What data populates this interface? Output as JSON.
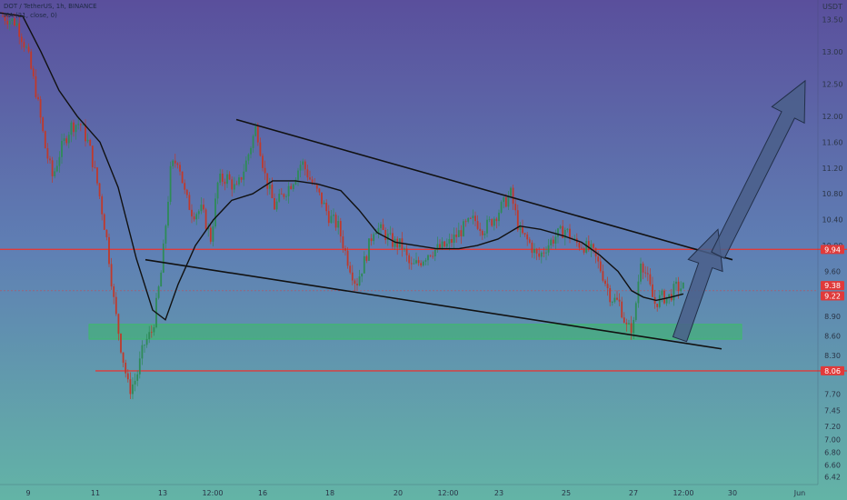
{
  "header": {
    "symbol_line": "DOT / TetherUS, 1h, BINANCE",
    "indicator_line": "MA (21, close, 0)"
  },
  "colors": {
    "bg_top": "#5a4f9c",
    "bg_mid": "#5f7fb4",
    "bg_bottom": "#63b4a6",
    "bull": "#2e8b57",
    "bear": "#c0392b",
    "red_line": "#e03a3a",
    "green_zone": "#3dba6a",
    "arrow_fill": "#4a5f8a",
    "ma_line": "#111111",
    "trend_line": "#111111"
  },
  "chart_data": {
    "type": "candlestick",
    "symbol": "DOT / TetherUS",
    "timeframe": "1h",
    "exchange": "BINANCE",
    "indicator": "MA (21, close, 0)",
    "y_axis": {
      "label": "USDT",
      "ylim": [
        6.3,
        13.8
      ],
      "ticks": [
        "13.50",
        "13.00",
        "12.50",
        "12.00",
        "11.60",
        "11.20",
        "10.80",
        "10.40",
        "10.00",
        "9.60",
        "9.20",
        "8.90",
        "8.60",
        "8.30",
        "7.70",
        "7.45",
        "7.20",
        "7.00",
        "6.80",
        "6.60",
        "6.42"
      ]
    },
    "x_axis": {
      "xlim": [
        0,
        932
      ],
      "ticks": [
        {
          "label": "9",
          "x": 31
        },
        {
          "label": "11",
          "x": 105
        },
        {
          "label": "13",
          "x": 179
        },
        {
          "label": "12:00",
          "x": 234
        },
        {
          "label": "16",
          "x": 289
        },
        {
          "label": "18",
          "x": 363
        },
        {
          "label": "20",
          "x": 438
        },
        {
          "label": "12:00",
          "x": 493
        },
        {
          "label": "23",
          "x": 549
        },
        {
          "label": "25",
          "x": 623
        },
        {
          "label": "27",
          "x": 697
        },
        {
          "label": "12:00",
          "x": 752
        },
        {
          "label": "30",
          "x": 806
        },
        {
          "label": "Jun",
          "x": 880
        }
      ]
    },
    "price_labels": [
      {
        "value": 9.94,
        "text": "9.94",
        "color": "#e03a3a"
      },
      {
        "value": 9.38,
        "text": "9.38",
        "color": "#e03a3a"
      },
      {
        "value": 9.22,
        "text": "9.22",
        "color": "#e03a3a"
      },
      {
        "value": 8.06,
        "text": "8.06",
        "color": "#e03a3a"
      }
    ],
    "horizontal_lines": [
      {
        "value": 9.94,
        "x_start": 0,
        "x_end": 932,
        "color": "#e03a3a"
      },
      {
        "value": 8.06,
        "x_start": 105,
        "x_end": 932,
        "color": "#e03a3a"
      }
    ],
    "zone": {
      "low": 8.55,
      "high": 8.78,
      "x_start": 98,
      "x_end": 816,
      "color": "#3dba6a"
    },
    "trend_lines": [
      {
        "points": [
          [
            260,
            11.95
          ],
          [
            806,
            9.78
          ]
        ]
      },
      {
        "points": [
          [
            160,
            9.78
          ],
          [
            794,
            8.4
          ]
        ]
      }
    ],
    "arrows": [
      {
        "points": [
          [
            748,
            8.55
          ],
          [
            790,
            10.25
          ]
        ]
      },
      {
        "points": [
          [
            790,
            9.85
          ],
          [
            886,
            12.55
          ]
        ]
      }
    ],
    "candle_path": [
      [
        3,
        13.55
      ],
      [
        18,
        13.45
      ],
      [
        30,
        13.0
      ],
      [
        40,
        12.35
      ],
      [
        50,
        11.5
      ],
      [
        58,
        11.05
      ],
      [
        66,
        11.45
      ],
      [
        78,
        11.85
      ],
      [
        88,
        11.9
      ],
      [
        98,
        11.55
      ],
      [
        108,
        10.9
      ],
      [
        118,
        10.05
      ],
      [
        126,
        9.05
      ],
      [
        134,
        8.35
      ],
      [
        142,
        7.75
      ],
      [
        150,
        7.95
      ],
      [
        158,
        8.45
      ],
      [
        168,
        8.7
      ],
      [
        178,
        9.65
      ],
      [
        188,
        11.2
      ],
      [
        196,
        11.35
      ],
      [
        204,
        10.75
      ],
      [
        212,
        10.5
      ],
      [
        222,
        10.55
      ],
      [
        232,
        10.1
      ],
      [
        240,
        11.0
      ],
      [
        250,
        11.05
      ],
      [
        260,
        10.85
      ],
      [
        270,
        11.25
      ],
      [
        282,
        11.85
      ],
      [
        292,
        11.05
      ],
      [
        302,
        10.6
      ],
      [
        312,
        10.8
      ],
      [
        322,
        11.0
      ],
      [
        332,
        11.3
      ],
      [
        342,
        11.0
      ],
      [
        352,
        10.75
      ],
      [
        362,
        10.45
      ],
      [
        372,
        10.3
      ],
      [
        382,
        9.8
      ],
      [
        392,
        9.4
      ],
      [
        402,
        9.8
      ],
      [
        412,
        10.3
      ],
      [
        422,
        10.2
      ],
      [
        432,
        10.05
      ],
      [
        442,
        10.0
      ],
      [
        452,
        9.65
      ],
      [
        462,
        9.75
      ],
      [
        472,
        9.9
      ],
      [
        482,
        9.95
      ],
      [
        492,
        10.0
      ],
      [
        502,
        10.15
      ],
      [
        512,
        10.3
      ],
      [
        522,
        10.4
      ],
      [
        532,
        10.25
      ],
      [
        542,
        10.4
      ],
      [
        552,
        10.6
      ],
      [
        562,
        10.8
      ],
      [
        572,
        10.2
      ],
      [
        582,
        10.05
      ],
      [
        592,
        9.8
      ],
      [
        602,
        10.0
      ],
      [
        612,
        10.15
      ],
      [
        622,
        10.25
      ],
      [
        632,
        10.05
      ],
      [
        642,
        10.0
      ],
      [
        652,
        9.9
      ],
      [
        662,
        9.6
      ],
      [
        672,
        9.2
      ],
      [
        682,
        9.1
      ],
      [
        690,
        8.7
      ],
      [
        697,
        8.75
      ],
      [
        705,
        9.8
      ],
      [
        712,
        9.5
      ],
      [
        720,
        9.1
      ],
      [
        728,
        9.2
      ],
      [
        736,
        9.2
      ],
      [
        744,
        9.35
      ],
      [
        752,
        9.35
      ]
    ],
    "ma_line": [
      [
        0,
        13.6
      ],
      [
        25,
        13.55
      ],
      [
        45,
        13.0
      ],
      [
        65,
        12.4
      ],
      [
        85,
        12.0
      ],
      [
        110,
        11.6
      ],
      [
        130,
        10.9
      ],
      [
        150,
        9.8
      ],
      [
        168,
        9.0
      ],
      [
        182,
        8.85
      ],
      [
        196,
        9.4
      ],
      [
        215,
        10.0
      ],
      [
        235,
        10.4
      ],
      [
        255,
        10.7
      ],
      [
        278,
        10.8
      ],
      [
        300,
        11.0
      ],
      [
        325,
        11.0
      ],
      [
        350,
        10.95
      ],
      [
        375,
        10.85
      ],
      [
        395,
        10.55
      ],
      [
        415,
        10.2
      ],
      [
        435,
        10.05
      ],
      [
        458,
        10.0
      ],
      [
        480,
        9.95
      ],
      [
        505,
        9.95
      ],
      [
        525,
        10.0
      ],
      [
        548,
        10.1
      ],
      [
        572,
        10.3
      ],
      [
        595,
        10.25
      ],
      [
        620,
        10.15
      ],
      [
        640,
        10.05
      ],
      [
        660,
        9.85
      ],
      [
        680,
        9.6
      ],
      [
        695,
        9.3
      ],
      [
        708,
        9.2
      ],
      [
        722,
        9.15
      ],
      [
        738,
        9.2
      ],
      [
        752,
        9.25
      ]
    ]
  }
}
